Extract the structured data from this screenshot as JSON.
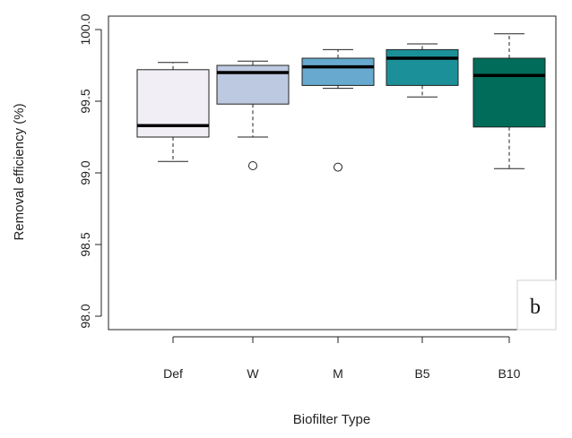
{
  "chart_data": {
    "type": "box",
    "xlabel": "Biofilter Type",
    "ylabel": "Removal efficiency (%)",
    "ylim": [
      97.9,
      100.1
    ],
    "yticks": [
      "98.0",
      "98.5",
      "99.0",
      "99.5",
      "100.0"
    ],
    "categories": [
      "Def",
      "W",
      "M",
      "B5",
      "B10"
    ],
    "boxes": [
      {
        "category": "Def",
        "whisker_low": 99.08,
        "q1": 99.25,
        "median": 99.33,
        "q3": 99.72,
        "whisker_high": 99.77,
        "outliers": [],
        "fill": "#f1eef6"
      },
      {
        "category": "W",
        "whisker_low": 99.25,
        "q1": 99.48,
        "median": 99.7,
        "q3": 99.75,
        "whisker_high": 99.78,
        "outliers": [
          99.05
        ],
        "fill": "#bdc9e1"
      },
      {
        "category": "M",
        "whisker_low": 99.59,
        "q1": 99.61,
        "median": 99.74,
        "q3": 99.8,
        "whisker_high": 99.86,
        "outliers": [
          99.04
        ],
        "fill": "#67a9cf"
      },
      {
        "category": "B5",
        "whisker_low": 99.53,
        "q1": 99.61,
        "median": 99.8,
        "q3": 99.86,
        "whisker_high": 99.9,
        "outliers": [],
        "fill": "#1c9099"
      },
      {
        "category": "B10",
        "whisker_low": 99.03,
        "q1": 99.32,
        "median": 99.68,
        "q3": 99.8,
        "whisker_high": 99.97,
        "outliers": [],
        "fill": "#016c59"
      }
    ],
    "panel_label": "b",
    "grid": false,
    "legend": "none"
  }
}
